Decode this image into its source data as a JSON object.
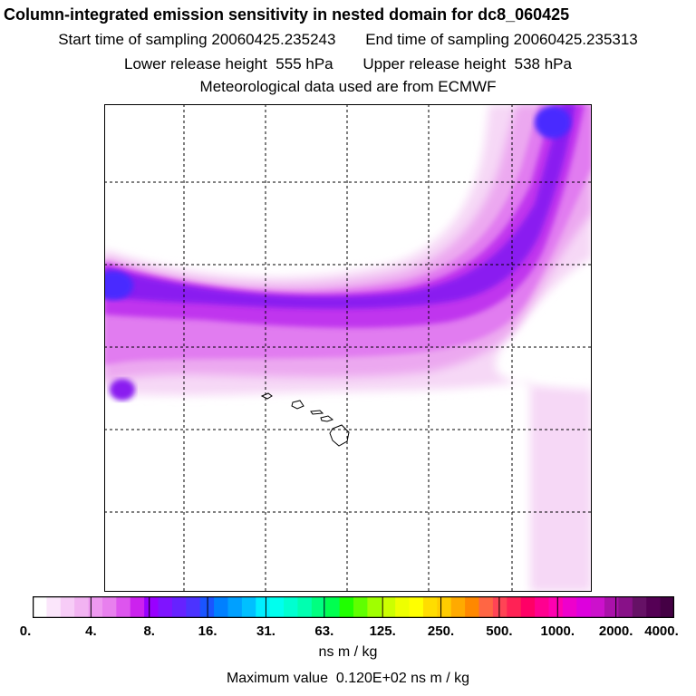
{
  "header": {
    "title": "Column-integrated emission sensitivity in nested domain for dc8_060425",
    "start_label": "Start time of sampling",
    "start_value": "20060425.235243",
    "end_label": "End time of sampling",
    "end_value": "20060425.235313",
    "lower_label": "Lower release height",
    "lower_value": "555 hPa",
    "upper_label": "Upper release height",
    "upper_value": "538 hPa",
    "met_text": "Meteorological data used are from ECMWF"
  },
  "colorbar": {
    "tick_labels": [
      "0.",
      "4.",
      "8.",
      "16.",
      "31.",
      "63.",
      "125.",
      "250.",
      "500.",
      "1000.",
      "2000.",
      "4000."
    ],
    "colors": [
      "#ffffff",
      "#fbe6fb",
      "#f7ccf7",
      "#f2b3f2",
      "#ee99f0",
      "#e880ee",
      "#dd55ee",
      "#cc22ee",
      "#9900ff",
      "#7f14ff",
      "#6622ff",
      "#4c33ff",
      "#1a55ff",
      "#0080ff",
      "#00a0ff",
      "#00c0ff",
      "#00eeff",
      "#00ffee",
      "#00ffd0",
      "#00ffb0",
      "#00ff80",
      "#00ff50",
      "#20ff00",
      "#60ff00",
      "#a0ff00",
      "#ccff00",
      "#eeff00",
      "#ffff00",
      "#ffdd00",
      "#ffcc00",
      "#ffaa00",
      "#ff8800",
      "#ff6644",
      "#ff4455",
      "#ff2255",
      "#ff0066",
      "#ff0090",
      "#ff00b0",
      "#ee00cc",
      "#dd00dd",
      "#cc11cc",
      "#aa11aa",
      "#881188",
      "#661166",
      "#550055",
      "#440044"
    ],
    "unit": "ns m / kg"
  },
  "max_label": "Maximum value",
  "max_value": "0.120E+02 ns m / kg",
  "map": {
    "plume_colors": {
      "faint": "#f6d8f6",
      "light": "#eca8f0",
      "mid": "#e17cf0",
      "strong": "#c034ee",
      "core": "#8a1cf0",
      "peak": "#4a2aff"
    }
  }
}
